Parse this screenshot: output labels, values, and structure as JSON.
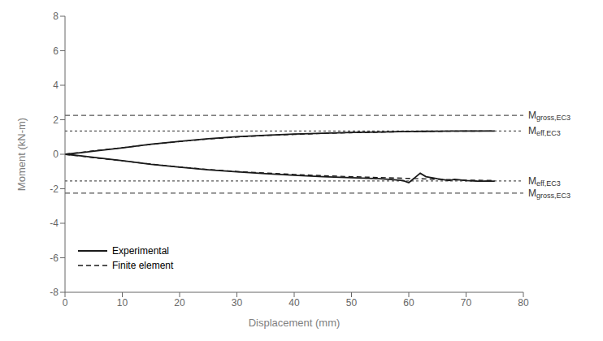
{
  "chart_data": {
    "type": "line",
    "xlabel": "Displacement (mm)",
    "ylabel": "Moment  (kN-m)",
    "xlim": [
      0,
      80
    ],
    "ylim": [
      -8,
      8
    ],
    "xticks": [
      0,
      10,
      20,
      30,
      40,
      50,
      60,
      70,
      80
    ],
    "yticks": [
      -8,
      -6,
      -4,
      -2,
      0,
      2,
      4,
      6,
      8
    ],
    "grid": false,
    "legend": "lower left",
    "series": [
      {
        "name": "Finite element",
        "color": "#1a1a1a",
        "line_style": "dashed",
        "x": [
          0,
          5,
          10,
          15,
          20,
          25,
          30,
          35,
          40,
          45,
          50,
          55,
          60,
          65,
          70,
          75
        ],
        "values": [
          0,
          0.2,
          0.38,
          0.57,
          0.74,
          0.88,
          1.0,
          1.09,
          1.15,
          1.21,
          1.25,
          1.28,
          1.31,
          1.33,
          1.34,
          1.35
        ]
      },
      {
        "name": "Finite element",
        "color": "#1a1a1a",
        "line_style": "dashed",
        "x": [
          0,
          5,
          10,
          15,
          20,
          25,
          30,
          35,
          40,
          45,
          50,
          55,
          60,
          65,
          70,
          75
        ],
        "values": [
          0,
          -0.2,
          -0.38,
          -0.57,
          -0.74,
          -0.88,
          -1.0,
          -1.09,
          -1.17,
          -1.24,
          -1.3,
          -1.35,
          -1.4,
          -1.45,
          -1.5,
          -1.52
        ]
      },
      {
        "name": "Experimental",
        "color": "#1a1a1a",
        "line_style": "solid",
        "x": [
          0,
          3,
          6,
          10,
          15,
          20,
          25,
          30,
          35,
          40,
          45,
          50,
          55,
          60,
          63,
          65,
          68,
          70,
          72,
          75
        ],
        "values": [
          0,
          0.1,
          0.22,
          0.37,
          0.58,
          0.75,
          0.9,
          1.02,
          1.1,
          1.17,
          1.22,
          1.26,
          1.29,
          1.32,
          1.33,
          1.34,
          1.35,
          1.35,
          1.35,
          1.35
        ]
      },
      {
        "name": "Experimental",
        "color": "#1a1a1a",
        "line_style": "solid",
        "x": [
          0,
          3,
          6,
          10,
          15,
          20,
          25,
          30,
          35,
          40,
          45,
          50,
          55,
          57,
          59,
          60,
          62,
          63,
          65,
          67,
          68,
          70,
          72,
          75
        ],
        "values": [
          0,
          -0.1,
          -0.22,
          -0.37,
          -0.58,
          -0.75,
          -0.9,
          -1.02,
          -1.12,
          -1.22,
          -1.3,
          -1.36,
          -1.42,
          -1.46,
          -1.52,
          -1.65,
          -1.1,
          -1.3,
          -1.42,
          -1.52,
          -1.45,
          -1.52,
          -1.56,
          -1.56
        ]
      }
    ],
    "legend_order": [
      "Experimental",
      "Finite element"
    ],
    "reference_lines": [
      {
        "y": 2.25,
        "label": "Mgross,EC3",
        "color": "#555555",
        "line_style": "dashed"
      },
      {
        "y": 1.35,
        "label": "Meff,EC3",
        "color": "#555555",
        "line_style": "dotted"
      },
      {
        "y": -2.25,
        "label": "Mgross,EC3",
        "color": "#555555",
        "line_style": "dashed"
      },
      {
        "y": -1.55,
        "label": "Meff,EC3",
        "color": "#555555",
        "line_style": "dotted"
      }
    ]
  }
}
